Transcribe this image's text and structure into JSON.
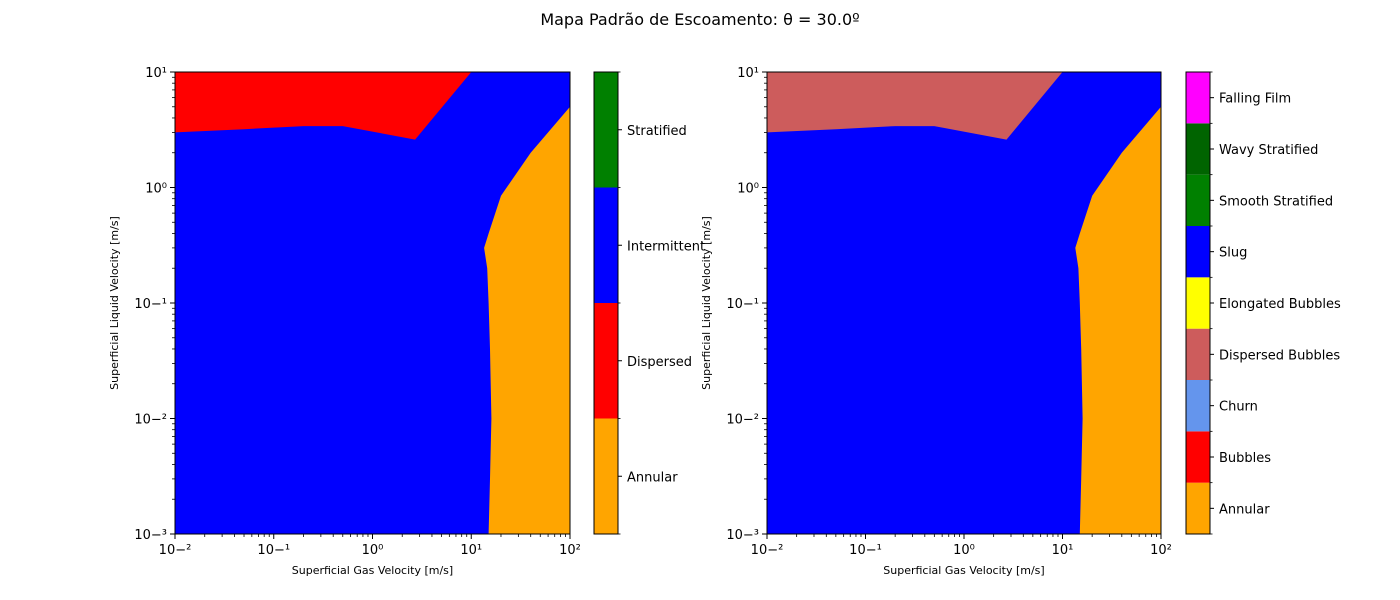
{
  "figure": {
    "title": "Mapa Padrão de Escoamento: θ = 30.0º"
  },
  "chart_data": [
    {
      "type": "heatmap",
      "title": "",
      "xlabel": "Superficial Gas Velocity [m/s]",
      "ylabel": "Superficial Liquid Velocity [m/s]",
      "xscale": "log",
      "yscale": "log",
      "xlim": [
        0.01,
        100
      ],
      "ylim": [
        0.001,
        10
      ],
      "x_ticks": [
        -2,
        -1,
        0,
        1,
        2
      ],
      "y_ticks": [
        -3,
        -2,
        -1,
        0,
        1
      ],
      "grid": false,
      "legend": "colorbar-right",
      "colorbar_categories": [
        {
          "name": "Annular",
          "color": "#FFA500"
        },
        {
          "name": "Dispersed",
          "color": "#FF0000"
        },
        {
          "name": "Intermittent",
          "color": "#0000FF"
        },
        {
          "name": "Stratified",
          "color": "#008000"
        }
      ],
      "background_regime": "Intermittent",
      "regions": [
        {
          "regime": "Dispersed",
          "color": "#FF0000",
          "boundary": [
            [
              0.01,
              10
            ],
            [
              10,
              10
            ],
            [
              2.7,
              2.6
            ],
            [
              0.5,
              3.4
            ],
            [
              0.2,
              3.4
            ],
            [
              0.05,
              3.2
            ],
            [
              0.01,
              3.0
            ]
          ]
        },
        {
          "regime": "Annular",
          "color": "#FFA500",
          "boundary": [
            [
              100,
              5.0
            ],
            [
              40,
              2.0
            ],
            [
              20,
              0.85
            ],
            [
              15,
              0.4
            ],
            [
              13.5,
              0.3
            ],
            [
              14.5,
              0.2
            ],
            [
              15,
              0.1
            ],
            [
              15.5,
              0.04
            ],
            [
              16,
              0.01
            ],
            [
              15.5,
              0.003
            ],
            [
              15,
              0.001
            ],
            [
              100,
              0.001
            ]
          ]
        }
      ]
    },
    {
      "type": "heatmap",
      "title": "",
      "xlabel": "Superficial Gas Velocity [m/s]",
      "ylabel": "Superficial Liquid Velocity [m/s]",
      "xscale": "log",
      "yscale": "log",
      "xlim": [
        0.01,
        100
      ],
      "ylim": [
        0.001,
        10
      ],
      "x_ticks": [
        -2,
        -1,
        0,
        1,
        2
      ],
      "y_ticks": [
        -3,
        -2,
        -1,
        0,
        1
      ],
      "grid": false,
      "legend": "colorbar-right",
      "colorbar_categories": [
        {
          "name": "Annular",
          "color": "#FFA500"
        },
        {
          "name": "Bubbles",
          "color": "#FF0000"
        },
        {
          "name": "Churn",
          "color": "#6495ED"
        },
        {
          "name": "Dispersed Bubbles",
          "color": "#CD5C5C"
        },
        {
          "name": "Elongated Bubbles",
          "color": "#FFFF00"
        },
        {
          "name": "Slug",
          "color": "#0000FF"
        },
        {
          "name": "Smooth Stratified",
          "color": "#008000"
        },
        {
          "name": "Wavy Stratified",
          "color": "#006400"
        },
        {
          "name": "Falling Film",
          "color": "#FF00FF"
        }
      ],
      "background_regime": "Slug",
      "regions": [
        {
          "regime": "Dispersed Bubbles",
          "color": "#CD5C5C",
          "boundary": [
            [
              0.01,
              10
            ],
            [
              10,
              10
            ],
            [
              2.7,
              2.6
            ],
            [
              0.5,
              3.4
            ],
            [
              0.2,
              3.4
            ],
            [
              0.05,
              3.2
            ],
            [
              0.01,
              3.0
            ]
          ]
        },
        {
          "regime": "Annular",
          "color": "#FFA500",
          "boundary": [
            [
              100,
              5.0
            ],
            [
              40,
              2.0
            ],
            [
              20,
              0.85
            ],
            [
              15,
              0.4
            ],
            [
              13.5,
              0.3
            ],
            [
              14.5,
              0.2
            ],
            [
              15,
              0.1
            ],
            [
              15.5,
              0.04
            ],
            [
              16,
              0.01
            ],
            [
              15.5,
              0.003
            ],
            [
              15,
              0.001
            ],
            [
              100,
              0.001
            ]
          ]
        }
      ]
    }
  ]
}
